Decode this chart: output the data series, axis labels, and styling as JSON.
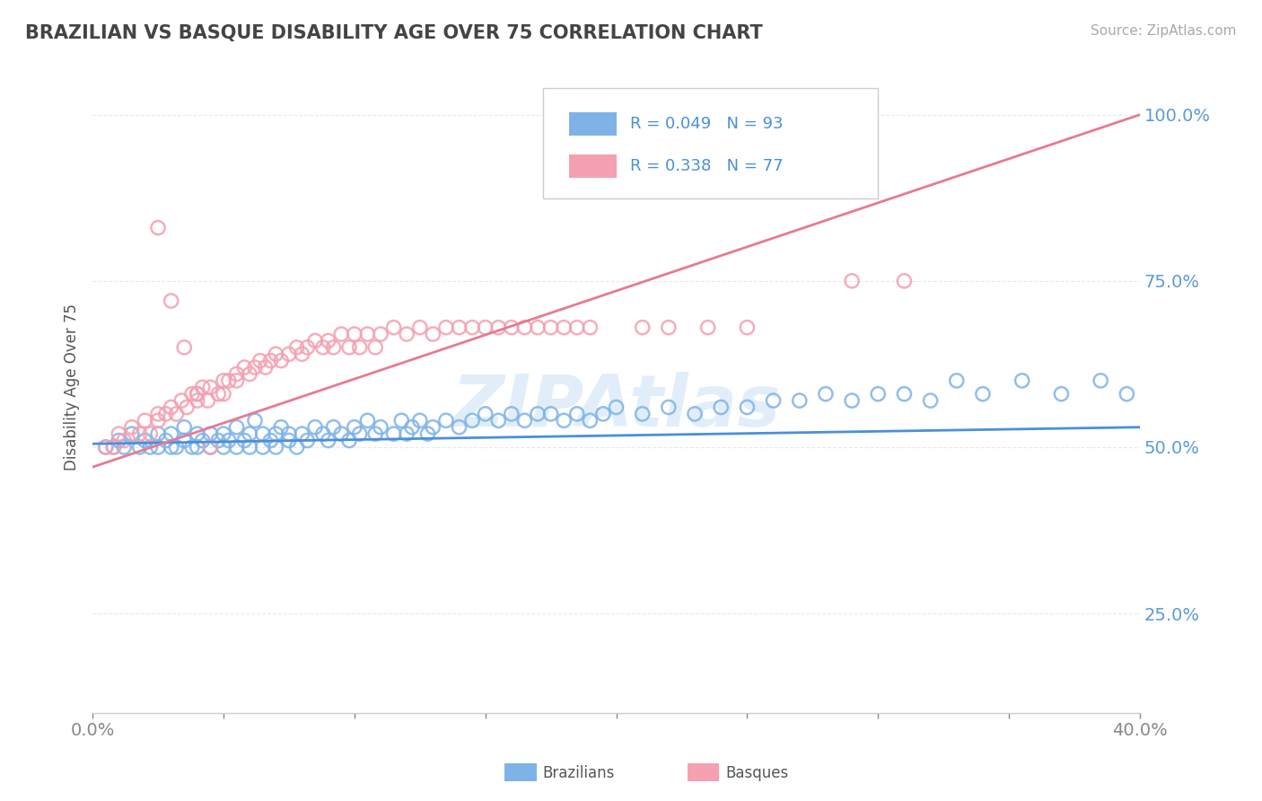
{
  "title": "BRAZILIAN VS BASQUE DISABILITY AGE OVER 75 CORRELATION CHART",
  "source": "Source: ZipAtlas.com",
  "ylabel": "Disability Age Over 75",
  "x_min": 0.0,
  "x_max": 0.4,
  "y_min": 0.1,
  "y_max": 1.08,
  "x_ticks_labeled": [
    0.0,
    0.4
  ],
  "x_ticks_minor": [
    0.05,
    0.1,
    0.15,
    0.2,
    0.25,
    0.3,
    0.35
  ],
  "x_tick_labels": [
    "0.0%",
    "40.0%"
  ],
  "y_ticks": [
    0.25,
    0.5,
    0.75,
    1.0
  ],
  "y_tick_labels": [
    "25.0%",
    "50.0%",
    "75.0%",
    "100.0%"
  ],
  "legend_r_blue": "R = 0.049",
  "legend_n_blue": "N = 93",
  "legend_r_pink": "R = 0.338",
  "legend_n_pink": "N = 77",
  "blue_color": "#7fb3e8",
  "pink_color": "#f4a0b0",
  "blue_line_color": "#4a90d9",
  "pink_line_color": "#e87a90",
  "legend_r_color": "#4a90d9",
  "watermark": "ZIPAtlas",
  "blue_scatter_x": [
    0.005,
    0.008,
    0.01,
    0.012,
    0.015,
    0.018,
    0.02,
    0.022,
    0.025,
    0.025,
    0.028,
    0.03,
    0.03,
    0.032,
    0.035,
    0.035,
    0.038,
    0.04,
    0.04,
    0.042,
    0.045,
    0.045,
    0.048,
    0.05,
    0.05,
    0.052,
    0.055,
    0.055,
    0.058,
    0.06,
    0.06,
    0.062,
    0.065,
    0.065,
    0.068,
    0.07,
    0.07,
    0.072,
    0.075,
    0.075,
    0.078,
    0.08,
    0.082,
    0.085,
    0.088,
    0.09,
    0.092,
    0.095,
    0.098,
    0.1,
    0.102,
    0.105,
    0.108,
    0.11,
    0.115,
    0.118,
    0.12,
    0.122,
    0.125,
    0.128,
    0.13,
    0.135,
    0.14,
    0.145,
    0.15,
    0.155,
    0.16,
    0.165,
    0.17,
    0.175,
    0.18,
    0.185,
    0.19,
    0.195,
    0.2,
    0.21,
    0.22,
    0.23,
    0.24,
    0.25,
    0.26,
    0.27,
    0.28,
    0.29,
    0.3,
    0.31,
    0.32,
    0.33,
    0.34,
    0.355,
    0.37,
    0.385,
    0.395
  ],
  "blue_scatter_y": [
    0.5,
    0.5,
    0.51,
    0.5,
    0.52,
    0.5,
    0.51,
    0.5,
    0.52,
    0.5,
    0.51,
    0.5,
    0.52,
    0.5,
    0.51,
    0.53,
    0.5,
    0.52,
    0.5,
    0.51,
    0.52,
    0.5,
    0.51,
    0.52,
    0.5,
    0.51,
    0.53,
    0.5,
    0.51,
    0.52,
    0.5,
    0.54,
    0.52,
    0.5,
    0.51,
    0.52,
    0.5,
    0.53,
    0.52,
    0.51,
    0.5,
    0.52,
    0.51,
    0.53,
    0.52,
    0.51,
    0.53,
    0.52,
    0.51,
    0.53,
    0.52,
    0.54,
    0.52,
    0.53,
    0.52,
    0.54,
    0.52,
    0.53,
    0.54,
    0.52,
    0.53,
    0.54,
    0.53,
    0.54,
    0.55,
    0.54,
    0.55,
    0.54,
    0.55,
    0.55,
    0.54,
    0.55,
    0.54,
    0.55,
    0.56,
    0.55,
    0.56,
    0.55,
    0.56,
    0.56,
    0.57,
    0.57,
    0.58,
    0.57,
    0.58,
    0.58,
    0.57,
    0.6,
    0.58,
    0.6,
    0.58,
    0.6,
    0.58
  ],
  "pink_scatter_x": [
    0.005,
    0.008,
    0.01,
    0.012,
    0.015,
    0.018,
    0.02,
    0.022,
    0.025,
    0.025,
    0.028,
    0.03,
    0.032,
    0.034,
    0.036,
    0.038,
    0.04,
    0.04,
    0.042,
    0.044,
    0.045,
    0.048,
    0.05,
    0.05,
    0.052,
    0.055,
    0.055,
    0.058,
    0.06,
    0.062,
    0.064,
    0.066,
    0.068,
    0.07,
    0.072,
    0.075,
    0.078,
    0.08,
    0.082,
    0.085,
    0.088,
    0.09,
    0.092,
    0.095,
    0.098,
    0.1,
    0.102,
    0.105,
    0.108,
    0.11,
    0.115,
    0.12,
    0.125,
    0.13,
    0.135,
    0.14,
    0.145,
    0.15,
    0.155,
    0.16,
    0.165,
    0.17,
    0.175,
    0.18,
    0.185,
    0.19,
    0.21,
    0.22,
    0.235,
    0.25,
    0.29,
    0.31,
    0.025,
    0.03,
    0.035,
    0.04,
    0.045
  ],
  "pink_scatter_y": [
    0.5,
    0.5,
    0.52,
    0.51,
    0.53,
    0.52,
    0.54,
    0.52,
    0.55,
    0.54,
    0.55,
    0.56,
    0.55,
    0.57,
    0.56,
    0.58,
    0.57,
    0.58,
    0.59,
    0.57,
    0.59,
    0.58,
    0.6,
    0.58,
    0.6,
    0.61,
    0.6,
    0.62,
    0.61,
    0.62,
    0.63,
    0.62,
    0.63,
    0.64,
    0.63,
    0.64,
    0.65,
    0.64,
    0.65,
    0.66,
    0.65,
    0.66,
    0.65,
    0.67,
    0.65,
    0.67,
    0.65,
    0.67,
    0.65,
    0.67,
    0.68,
    0.67,
    0.68,
    0.67,
    0.68,
    0.68,
    0.68,
    0.68,
    0.68,
    0.68,
    0.68,
    0.68,
    0.68,
    0.68,
    0.68,
    0.68,
    0.68,
    0.68,
    0.68,
    0.68,
    0.75,
    0.75,
    0.83,
    0.72,
    0.65,
    0.58,
    0.5
  ],
  "blue_line_x": [
    0.0,
    0.4
  ],
  "blue_line_y": [
    0.505,
    0.53
  ],
  "pink_line_x": [
    0.0,
    0.4
  ],
  "pink_line_y": [
    0.47,
    1.0
  ],
  "background_color": "#ffffff",
  "grid_color": "#e8e8e8",
  "title_color": "#444444",
  "axis_color": "#888888"
}
